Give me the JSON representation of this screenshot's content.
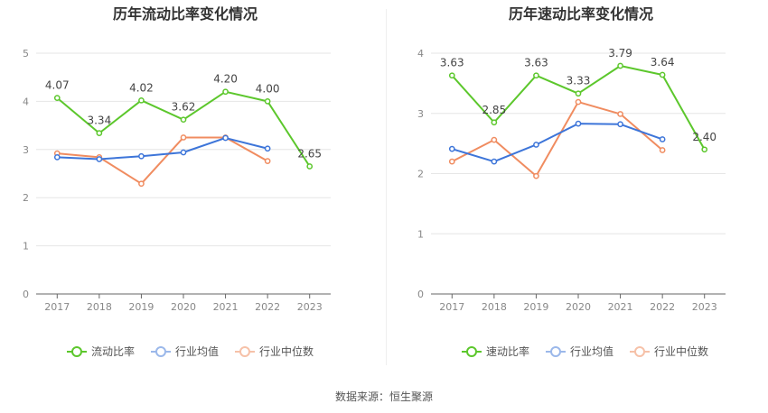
{
  "chart_data": [
    {
      "type": "line",
      "title": "历年流动比率变化情况",
      "categories": [
        "2017",
        "2018",
        "2019",
        "2020",
        "2021",
        "2022",
        "2023"
      ],
      "ylim": [
        0,
        5
      ],
      "yticks": [
        0,
        1,
        2,
        3,
        4,
        5
      ],
      "grid": true,
      "legend_position": "bottom",
      "series": [
        {
          "name": "流动比率",
          "color": "#5cc72c",
          "values": [
            4.07,
            3.34,
            4.02,
            3.62,
            4.2,
            4.0,
            2.65
          ],
          "labels": [
            "4.07",
            "3.34",
            "4.02",
            "3.62",
            "4.20",
            "4.00",
            "2.65"
          ]
        },
        {
          "name": "行业均值",
          "color": "#3d75d9",
          "values": [
            2.84,
            2.8,
            2.86,
            2.94,
            3.24,
            3.02,
            null
          ]
        },
        {
          "name": "行业中位数",
          "color": "#f08c60",
          "values": [
            2.92,
            2.84,
            2.29,
            3.25,
            3.25,
            2.76,
            null
          ]
        }
      ]
    },
    {
      "type": "line",
      "title": "历年速动比率变化情况",
      "categories": [
        "2017",
        "2018",
        "2019",
        "2020",
        "2021",
        "2022",
        "2023"
      ],
      "ylim": [
        0,
        4
      ],
      "yticks": [
        0,
        1,
        2,
        3,
        4
      ],
      "grid": true,
      "legend_position": "bottom",
      "series": [
        {
          "name": "速动比率",
          "color": "#5cc72c",
          "values": [
            3.63,
            2.85,
            3.63,
            3.33,
            3.79,
            3.64,
            2.4
          ],
          "labels": [
            "3.63",
            "2.85",
            "3.63",
            "3.33",
            "3.79",
            "3.64",
            "2.40"
          ]
        },
        {
          "name": "行业均值",
          "color": "#3d75d9",
          "values": [
            2.41,
            2.2,
            2.48,
            2.83,
            2.82,
            2.57,
            null
          ]
        },
        {
          "name": "行业中位数",
          "color": "#f08c60",
          "values": [
            2.2,
            2.56,
            1.96,
            3.19,
            2.99,
            2.39,
            null
          ]
        }
      ]
    }
  ],
  "source_text": "数据来源：恒生聚源"
}
